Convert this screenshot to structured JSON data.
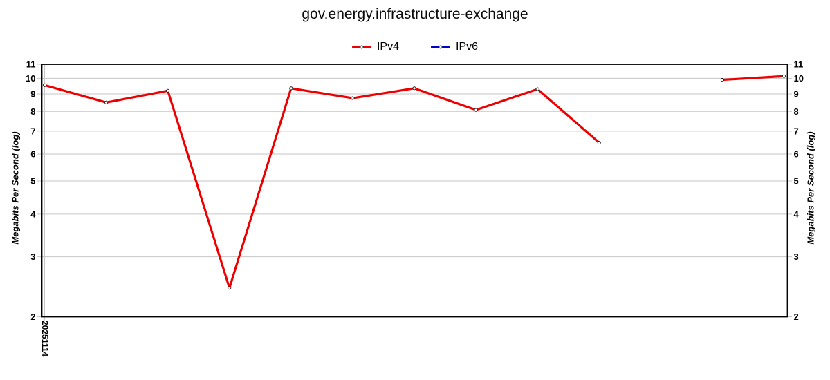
{
  "title": "gov.energy.infrastructure-exchange",
  "legend": {
    "items": [
      {
        "label": "IPv4",
        "color": "#ee0000"
      },
      {
        "label": "IPv6",
        "color": "#0000cc"
      }
    ]
  },
  "axes": {
    "ylabel_left": "Megabits Per Second (log)",
    "ylabel_right": "Megabits Per Second (log)",
    "x_first_tick_label": "20251114"
  },
  "chart_data": {
    "type": "line",
    "title": "gov.energy.infrastructure-exchange",
    "xlabel": "",
    "ylabel": "Megabits Per Second (log)",
    "yscale": "log",
    "ylim": [
      2,
      11
    ],
    "y_ticks": [
      2,
      3,
      4,
      5,
      6,
      7,
      8,
      9,
      10,
      11
    ],
    "grid": true,
    "legend_position": "top-center",
    "x_slots": 13,
    "x_tick_labels": [
      {
        "slot": 0,
        "label": "20251114"
      }
    ],
    "frame_color": "#000000",
    "grid_color": "#c6c6c6",
    "marker": {
      "fill": "#ffffff",
      "stroke": "#1a1a1a"
    },
    "series": [
      {
        "name": "IPv4",
        "color": "#ee0000",
        "values": [
          9.55,
          8.5,
          9.2,
          2.43,
          9.35,
          8.75,
          9.35,
          8.08,
          9.3,
          6.48,
          null,
          9.9,
          10.15
        ]
      },
      {
        "name": "IPv6",
        "color": "#0000cc",
        "values": [
          null,
          null,
          null,
          null,
          null,
          null,
          null,
          null,
          null,
          null,
          null,
          null,
          null
        ]
      }
    ]
  }
}
